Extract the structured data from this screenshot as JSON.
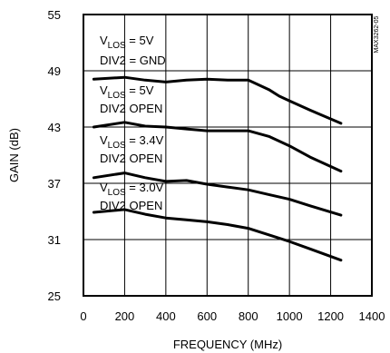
{
  "chart_data": {
    "type": "line",
    "xlabel": "FREQUENCY (MHz)",
    "ylabel": "GAIN (dB)",
    "xlim": [
      0,
      1400
    ],
    "ylim": [
      25,
      55
    ],
    "x_ticks": [
      0,
      200,
      400,
      600,
      800,
      1000,
      1200,
      1400
    ],
    "y_ticks": [
      25,
      31,
      37,
      43,
      49,
      55
    ],
    "grid": true,
    "figure_code": "MAX3262-05",
    "series": [
      {
        "points": [
          [
            50,
            48.1
          ],
          [
            200,
            48.3
          ],
          [
            300,
            48.0
          ],
          [
            400,
            47.8
          ],
          [
            500,
            48.0
          ],
          [
            600,
            48.1
          ],
          [
            700,
            48.0
          ],
          [
            800,
            48.0
          ],
          [
            850,
            47.5
          ],
          [
            900,
            47.0
          ],
          [
            950,
            46.3
          ],
          [
            1000,
            45.8
          ],
          [
            1100,
            44.8
          ],
          [
            1250,
            43.4
          ]
        ]
      },
      {
        "points": [
          [
            50,
            43.0
          ],
          [
            200,
            43.5
          ],
          [
            300,
            43.1
          ],
          [
            400,
            43.0
          ],
          [
            500,
            42.8
          ],
          [
            600,
            42.6
          ],
          [
            700,
            42.6
          ],
          [
            800,
            42.6
          ],
          [
            900,
            42.0
          ],
          [
            1000,
            41.0
          ],
          [
            1100,
            39.8
          ],
          [
            1250,
            38.3
          ]
        ]
      },
      {
        "points": [
          [
            50,
            37.6
          ],
          [
            200,
            38.1
          ],
          [
            300,
            37.6
          ],
          [
            400,
            37.2
          ],
          [
            500,
            37.3
          ],
          [
            600,
            36.9
          ],
          [
            700,
            36.6
          ],
          [
            800,
            36.3
          ],
          [
            900,
            35.8
          ],
          [
            1000,
            35.3
          ],
          [
            1100,
            34.6
          ],
          [
            1250,
            33.6
          ]
        ]
      },
      {
        "points": [
          [
            50,
            33.9
          ],
          [
            200,
            34.2
          ],
          [
            300,
            33.7
          ],
          [
            400,
            33.3
          ],
          [
            500,
            33.1
          ],
          [
            600,
            32.9
          ],
          [
            700,
            32.6
          ],
          [
            800,
            32.2
          ],
          [
            900,
            31.5
          ],
          [
            1000,
            30.8
          ],
          [
            1100,
            30.0
          ],
          [
            1250,
            28.8
          ]
        ]
      }
    ],
    "annotations": [
      {
        "main": "V",
        "sub": "LOS",
        "rest": " = 5V",
        "line2": "DIV2 = GND"
      },
      {
        "main": "V",
        "sub": "LOS",
        "rest": " = 5V",
        "line2": "DIV2 OPEN"
      },
      {
        "main": "V",
        "sub": "LOS",
        "rest": " = 3.4V",
        "line2": "DIV2 OPEN"
      },
      {
        "main": "V",
        "sub": "LOS",
        "rest": " = 3.0V",
        "line2": "DIV2 OPEN"
      }
    ]
  }
}
